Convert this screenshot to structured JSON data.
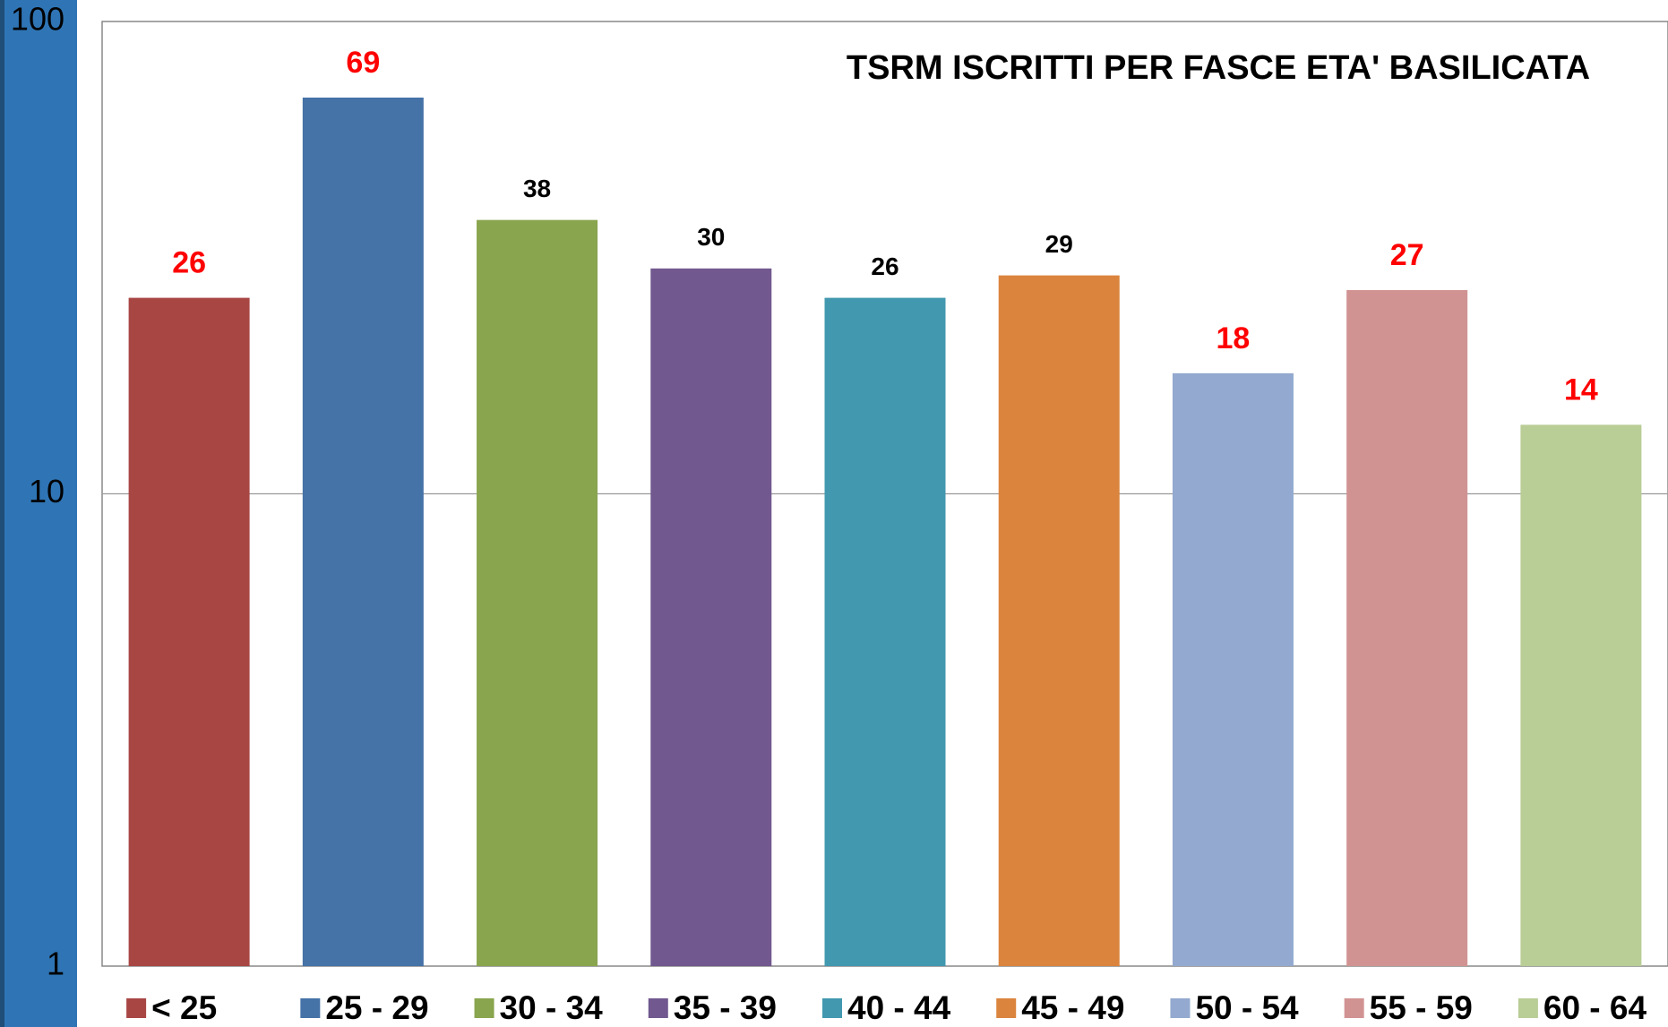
{
  "chart_data": {
    "type": "bar",
    "title": "TSRM ISCRITTI PER FASCE ETA' BASILICATA",
    "categories": [
      "< 25",
      "25 - 29",
      "30 - 34",
      "35 - 39",
      "40 - 44",
      "45 - 49",
      "50 - 54",
      "55 - 59",
      "60 - 64"
    ],
    "values": [
      26,
      69,
      38,
      30,
      26,
      29,
      18,
      27,
      14
    ],
    "colors": [
      "#a84644",
      "#4572a7",
      "#89a54e",
      "#71588f",
      "#4198af",
      "#db843d",
      "#93a9cf",
      "#d19392",
      "#b9cd96"
    ],
    "label_colors": [
      "#ff0000",
      "#ff0000",
      "#000000",
      "#000000",
      "#000000",
      "#000000",
      "#ff0000",
      "#ff0000",
      "#ff0000"
    ],
    "log_scale": true,
    "ylim": [
      1,
      100
    ],
    "yticks": [
      1,
      10,
      100
    ],
    "grid": true,
    "legend": "bottom"
  }
}
